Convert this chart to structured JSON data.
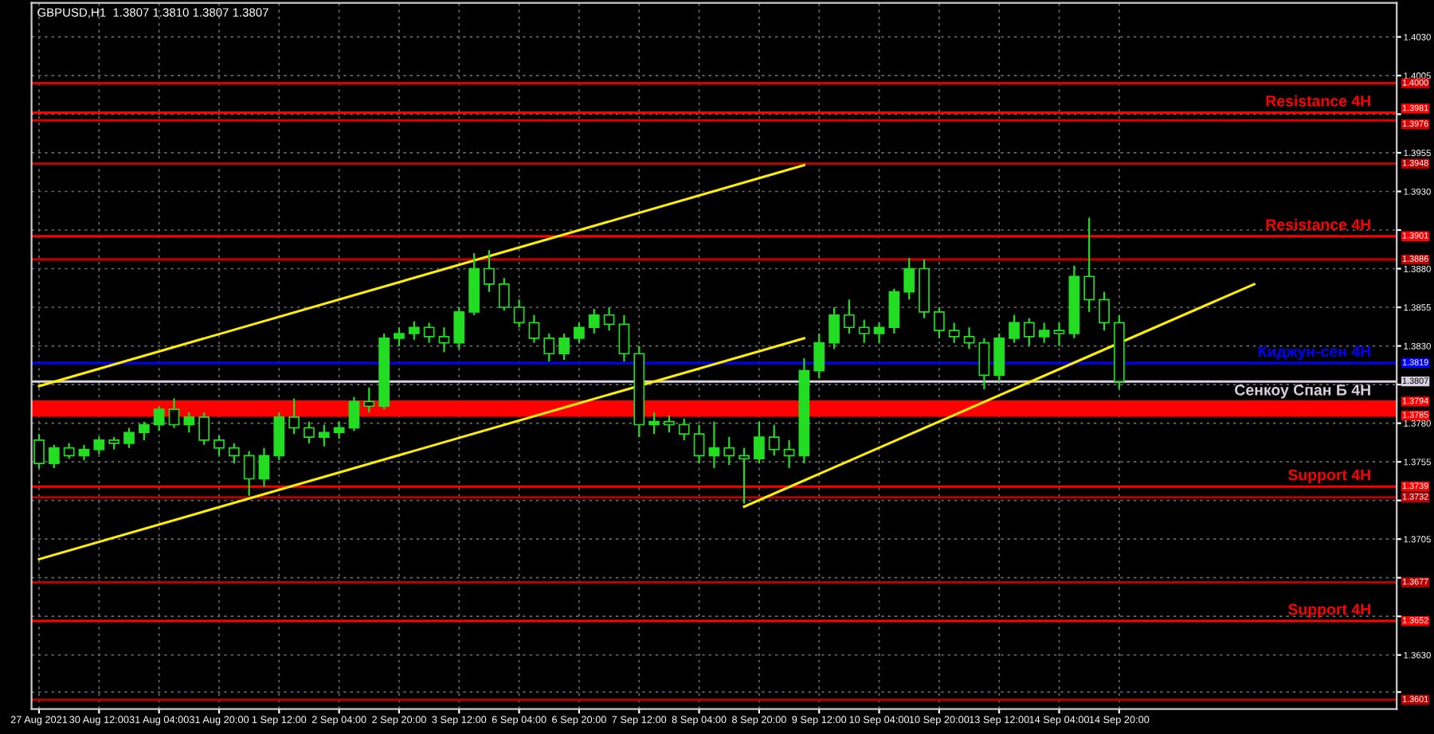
{
  "chart_data": {
    "type": "candlestick",
    "title": "GBPUSD,H1  1.3807 1.3810 1.3807 1.3807",
    "categories": [
      "27 Aug 2021",
      null,
      null,
      null,
      "30 Aug 12:00",
      null,
      null,
      null,
      "31 Aug 04:00",
      null,
      null,
      null,
      "31 Aug 20:00",
      null,
      null,
      null,
      "1 Sep 12:00",
      null,
      null,
      null,
      "2 Sep 04:00",
      null,
      null,
      null,
      "2 Sep 20:00",
      null,
      null,
      null,
      "3 Sep 12:00",
      null,
      null,
      null,
      "6 Sep 04:00",
      null,
      null,
      null,
      "6 Sep 20:00",
      null,
      null,
      null,
      "7 Sep 12:00",
      null,
      null,
      null,
      "8 Sep 04:00",
      null,
      null,
      null,
      "8 Sep 20:00",
      null,
      null,
      null,
      "9 Sep 12:00",
      null,
      null,
      null,
      "10 Sep 04:00",
      null,
      null,
      null,
      "10 Sep 20:00",
      null,
      null,
      null,
      "13 Sep 12:00",
      null,
      null,
      null,
      "14 Sep 04:00",
      null,
      null,
      null,
      "14 Sep 20:00",
      null,
      null,
      null,
      null,
      null,
      null,
      null,
      null,
      null,
      null,
      null,
      null,
      null,
      null,
      null,
      null,
      null,
      null
    ],
    "ohlc": [
      [
        1.3769,
        1.3773,
        1.3751,
        1.3754
      ],
      [
        1.3754,
        1.3766,
        1.3751,
        1.3764
      ],
      [
        1.3764,
        1.3767,
        1.3757,
        1.3759
      ],
      [
        1.3759,
        1.3766,
        1.3756,
        1.3763
      ],
      [
        1.3763,
        1.3771,
        1.376,
        1.3769
      ],
      [
        1.3769,
        1.3771,
        1.3763,
        1.3767
      ],
      [
        1.3767,
        1.3777,
        1.3764,
        1.3774
      ],
      [
        1.3774,
        1.3781,
        1.3769,
        1.3779
      ],
      [
        1.3779,
        1.3791,
        1.3775,
        1.3789
      ],
      [
        1.3789,
        1.3796,
        1.3777,
        1.3779
      ],
      [
        1.3779,
        1.3787,
        1.3774,
        1.3784
      ],
      [
        1.3784,
        1.3787,
        1.3766,
        1.3769
      ],
      [
        1.3769,
        1.3772,
        1.3759,
        1.3764
      ],
      [
        1.3764,
        1.3767,
        1.3754,
        1.3759
      ],
      [
        1.3759,
        1.3762,
        1.3733,
        1.3744
      ],
      [
        1.3744,
        1.3764,
        1.3739,
        1.3759
      ],
      [
        1.3759,
        1.3787,
        1.3756,
        1.3784
      ],
      [
        1.3784,
        1.3796,
        1.3773,
        1.3777
      ],
      [
        1.3777,
        1.3781,
        1.3767,
        1.3771
      ],
      [
        1.3771,
        1.3779,
        1.3765,
        1.3774
      ],
      [
        1.3774,
        1.3781,
        1.377,
        1.3777
      ],
      [
        1.3777,
        1.3797,
        1.3775,
        1.3794
      ],
      [
        1.3794,
        1.3803,
        1.3787,
        1.3791
      ],
      [
        1.3791,
        1.3838,
        1.3789,
        1.3835
      ],
      [
        1.3835,
        1.3842,
        1.383,
        1.3838
      ],
      [
        1.3838,
        1.3846,
        1.3834,
        1.3842
      ],
      [
        1.3842,
        1.3845,
        1.3832,
        1.3836
      ],
      [
        1.3836,
        1.3842,
        1.3826,
        1.3832
      ],
      [
        1.3832,
        1.3855,
        1.3828,
        1.3852
      ],
      [
        1.3852,
        1.389,
        1.385,
        1.388
      ],
      [
        1.388,
        1.3892,
        1.3865,
        1.387
      ],
      [
        1.387,
        1.3874,
        1.3853,
        1.3855
      ],
      [
        1.3855,
        1.386,
        1.3842,
        1.3845
      ],
      [
        1.3845,
        1.385,
        1.3832,
        1.3835
      ],
      [
        1.3835,
        1.3838,
        1.382,
        1.3825
      ],
      [
        1.3825,
        1.3838,
        1.3821,
        1.3835
      ],
      [
        1.3835,
        1.3845,
        1.3832,
        1.3842
      ],
      [
        1.3842,
        1.3854,
        1.3838,
        1.385
      ],
      [
        1.385,
        1.3855,
        1.384,
        1.3844
      ],
      [
        1.3844,
        1.385,
        1.382,
        1.3825
      ],
      [
        1.3825,
        1.383,
        1.3771,
        1.3779
      ],
      [
        1.3779,
        1.3787,
        1.3773,
        1.3781
      ],
      [
        1.3781,
        1.3785,
        1.3774,
        1.3779
      ],
      [
        1.3779,
        1.3783,
        1.3769,
        1.3773
      ],
      [
        1.3773,
        1.3779,
        1.3754,
        1.3759
      ],
      [
        1.3759,
        1.3781,
        1.3751,
        1.3764
      ],
      [
        1.3764,
        1.3771,
        1.3753,
        1.3759
      ],
      [
        1.3759,
        1.3764,
        1.3728,
        1.3757
      ],
      [
        1.3757,
        1.3781,
        1.3754,
        1.3771
      ],
      [
        1.3771,
        1.3779,
        1.3759,
        1.3763
      ],
      [
        1.3763,
        1.3769,
        1.3751,
        1.3759
      ],
      [
        1.3759,
        1.3822,
        1.3754,
        1.3814
      ],
      [
        1.3814,
        1.3838,
        1.3809,
        1.3832
      ],
      [
        1.3832,
        1.3855,
        1.3828,
        1.385
      ],
      [
        1.385,
        1.386,
        1.3838,
        1.3842
      ],
      [
        1.3842,
        1.3847,
        1.3832,
        1.3838
      ],
      [
        1.3838,
        1.3845,
        1.3832,
        1.3842
      ],
      [
        1.3842,
        1.3867,
        1.3838,
        1.3865
      ],
      [
        1.3865,
        1.3887,
        1.386,
        1.388
      ],
      [
        1.388,
        1.3886,
        1.3848,
        1.3852
      ],
      [
        1.3852,
        1.3855,
        1.3835,
        1.384
      ],
      [
        1.384,
        1.3845,
        1.3832,
        1.3836
      ],
      [
        1.3836,
        1.3842,
        1.3828,
        1.3832
      ],
      [
        1.3832,
        1.3835,
        1.3802,
        1.3811
      ],
      [
        1.3811,
        1.3838,
        1.3807,
        1.3835
      ],
      [
        1.3835,
        1.385,
        1.3832,
        1.3845
      ],
      [
        1.3845,
        1.3848,
        1.383,
        1.3836
      ],
      [
        1.3836,
        1.3845,
        1.3832,
        1.384
      ],
      [
        1.384,
        1.3845,
        1.383,
        1.3838
      ],
      [
        1.3838,
        1.3882,
        1.3835,
        1.3875
      ],
      [
        1.3875,
        1.3913,
        1.3852,
        1.386
      ],
      [
        1.386,
        1.3865,
        1.384,
        1.3845
      ],
      [
        1.3845,
        1.385,
        1.3802,
        1.3807
      ],
      null,
      null,
      null,
      null,
      null,
      null,
      null,
      null,
      null,
      null,
      null,
      null,
      null,
      null,
      null,
      null,
      null,
      null
    ],
    "series": [
      {
        "type": "line",
        "color": "#ffee00",
        "values": [
          1.3804,
          null,
          null,
          null,
          null,
          null,
          null,
          null,
          null,
          null,
          null,
          null,
          null,
          null,
          null,
          null,
          null,
          null,
          null,
          null,
          null,
          null,
          null,
          null,
          null,
          null,
          null,
          null,
          null,
          null,
          null,
          null,
          null,
          null,
          null,
          null,
          null,
          null,
          null,
          null,
          null,
          null,
          null,
          null,
          null,
          null,
          null,
          null,
          null,
          null,
          null,
          1.3947,
          null,
          null,
          null,
          null,
          null,
          null,
          null,
          null,
          null,
          null,
          null,
          null,
          null,
          null,
          null,
          null,
          null,
          null,
          null,
          null,
          null,
          null,
          null,
          null,
          null,
          null,
          null,
          null,
          null,
          null,
          null,
          null,
          null,
          null,
          null,
          null,
          null,
          null,
          null
        ]
      },
      {
        "type": "line",
        "color": "#ffee00",
        "values": [
          1.3692,
          null,
          null,
          null,
          null,
          null,
          null,
          null,
          null,
          null,
          null,
          null,
          null,
          null,
          null,
          null,
          null,
          null,
          null,
          null,
          null,
          null,
          null,
          null,
          null,
          null,
          null,
          null,
          null,
          null,
          null,
          null,
          null,
          null,
          null,
          null,
          null,
          null,
          null,
          null,
          null,
          null,
          null,
          null,
          null,
          null,
          null,
          null,
          null,
          null,
          null,
          1.3835,
          null,
          null,
          null,
          null,
          null,
          null,
          null,
          null,
          null,
          null,
          null,
          null,
          null,
          null,
          null,
          null,
          null,
          null,
          null,
          null,
          null,
          null,
          null,
          null,
          null,
          null,
          null,
          null,
          null,
          null,
          null,
          null,
          null,
          null,
          null,
          null,
          null,
          null,
          null
        ]
      },
      {
        "type": "line",
        "color": "#ffee00",
        "values": [
          null,
          null,
          null,
          null,
          null,
          null,
          null,
          null,
          null,
          null,
          null,
          null,
          null,
          null,
          null,
          null,
          null,
          null,
          null,
          null,
          null,
          null,
          null,
          null,
          null,
          null,
          null,
          null,
          null,
          null,
          null,
          null,
          null,
          null,
          null,
          null,
          null,
          null,
          null,
          null,
          null,
          null,
          null,
          null,
          null,
          null,
          null,
          1.3726,
          null,
          null,
          null,
          null,
          null,
          null,
          null,
          null,
          null,
          null,
          null,
          null,
          null,
          null,
          null,
          null,
          null,
          null,
          null,
          null,
          null,
          null,
          null,
          null,
          null,
          null,
          null,
          null,
          null,
          null,
          null,
          null,
          null,
          1.387,
          null,
          null,
          null,
          null,
          null,
          null,
          null,
          null,
          null
        ]
      }
    ],
    "ylim": [
      1.3595,
      1.4052
    ],
    "yticks": [
      {
        "value": 1.3606,
        "label": null
      },
      {
        "value": 1.363,
        "label": "1.3630"
      },
      {
        "value": 1.3655,
        "label": null
      },
      {
        "value": 1.368,
        "label": null
      },
      1.3705,
      {
        "value": 1.373,
        "label": null
      },
      1.3755,
      {
        "value": 1.378,
        "label": "1.3780"
      },
      {
        "value": 1.3805,
        "label": null
      },
      {
        "value": 1.383,
        "label": "1.3830"
      },
      1.3855,
      {
        "value": 1.388,
        "label": "1.3880"
      },
      {
        "value": 1.3905,
        "label": null
      },
      {
        "value": 1.393,
        "label": "1.3930"
      },
      1.3955,
      {
        "value": 1.398,
        "label": null
      },
      1.4005,
      {
        "value": 1.403,
        "label": "1.4030"
      }
    ],
    "grid": true,
    "ref_lines": [
      {
        "axis": "y",
        "value": 1.4,
        "label": "1.4000",
        "color": "#dd0000"
      },
      {
        "axis": "y",
        "value": 1.3981,
        "label": "1.3981",
        "color": "#ff0000"
      },
      {
        "axis": "y",
        "value": 1.3976,
        "label": "1.3976",
        "color": "#dd0000"
      },
      {
        "axis": "y",
        "value": 1.3948,
        "label": "1.3948",
        "color": "#bb0000"
      },
      {
        "axis": "y",
        "value": 1.3901,
        "label": "1.3901",
        "color": "#ff0000"
      },
      {
        "axis": "y",
        "value": 1.3886,
        "label": "1.3886",
        "color": "#bb0000"
      },
      {
        "axis": "y",
        "value": 1.3819,
        "label": "1.3819",
        "color": "#0000ff"
      },
      {
        "axis": "y",
        "value": 1.3807,
        "label": "1.3807",
        "color": "#d8d0e0"
      },
      {
        "axis": "y",
        "value": 1.3794,
        "label": "1.3794",
        "color": "#ff0000"
      },
      {
        "axis": "y",
        "value": 1.3785,
        "label": "1.3785",
        "color": "#ff0000"
      },
      {
        "axis": "y",
        "value": 1.3739,
        "label": "1.3739",
        "color": "#ff0000"
      },
      {
        "axis": "y",
        "value": 1.3732,
        "label": "1.3732",
        "color": "#bb0000"
      },
      {
        "axis": "y",
        "value": 1.3677,
        "label": "1.3677",
        "color": "#bb0000"
      },
      {
        "axis": "y",
        "value": 1.3652,
        "label": "1.3652",
        "color": "#ff0000"
      },
      {
        "axis": "y",
        "value": 1.3601,
        "label": "1.3601",
        "color": "#bb0000"
      }
    ],
    "bands": [
      {
        "axis": "y",
        "from": 1.3785,
        "to": 1.3794,
        "label": "Сенкоу Спан Б 4H",
        "color": "#ff0000"
      }
    ],
    "annotations": [
      {
        "text": "Resistance 4H",
        "y": 1.3981
      },
      {
        "text": "Resistance 4H",
        "y": 1.3901
      },
      {
        "text": "Киджун-сен 4H",
        "y": 1.3819
      },
      {
        "text": "Support 4H",
        "y": 1.3739
      },
      {
        "text": "Support 4H",
        "y": 1.3652
      }
    ]
  }
}
